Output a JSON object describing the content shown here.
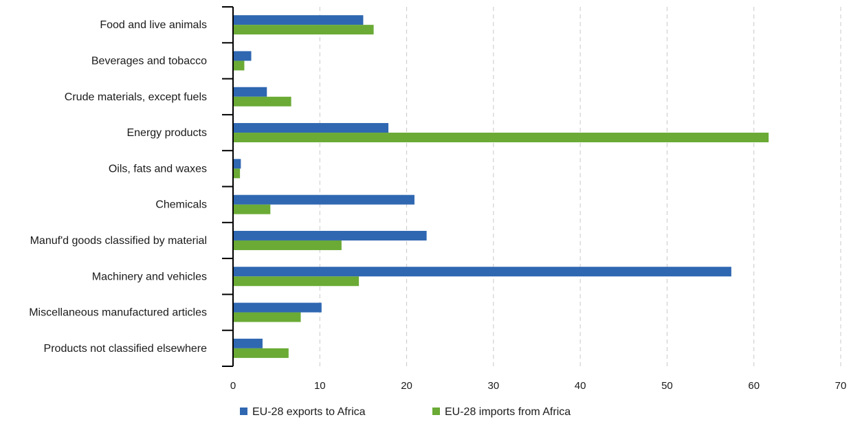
{
  "chart_data": {
    "type": "bar",
    "orientation": "horizontal",
    "categories": [
      "Food and live animals",
      "Beverages and tobacco",
      "Crude materials, except fuels",
      "Energy products",
      "Oils, fats and waxes",
      "Chemicals",
      "Manuf'd goods classified by material",
      "Machinery and vehicles",
      "Miscellaneous manufactured articles",
      "Products not classified elsewhere"
    ],
    "series": [
      {
        "name": "EU-28 exports to Africa",
        "color": "#2f67b1",
        "values": [
          15.0,
          2.1,
          3.9,
          17.9,
          0.9,
          20.9,
          22.3,
          57.4,
          10.2,
          3.4
        ]
      },
      {
        "name": "EU-28 imports from Africa",
        "color": "#6aaa35",
        "values": [
          16.2,
          1.3,
          6.7,
          61.7,
          0.8,
          4.3,
          12.5,
          14.5,
          7.8,
          6.4
        ]
      }
    ],
    "xlim": [
      0,
      70
    ],
    "xticks": [
      0,
      10,
      20,
      30,
      40,
      50,
      60,
      70
    ],
    "grid": "vertical dashed",
    "legend_position": "bottom"
  }
}
